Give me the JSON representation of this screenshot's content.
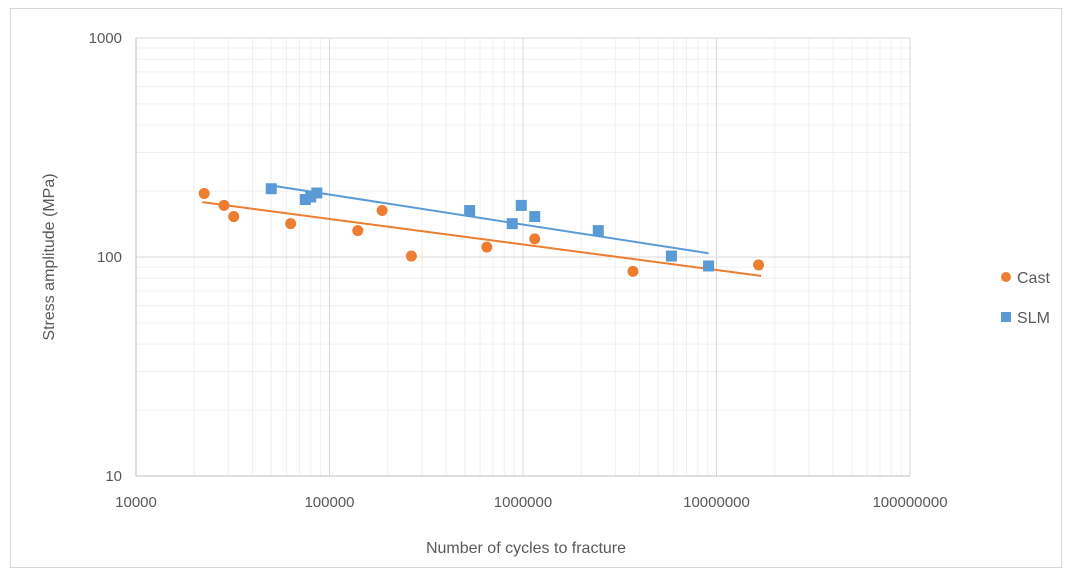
{
  "chart_data": {
    "type": "scatter",
    "title": "",
    "xlabel": "Number of cycles to fracture",
    "ylabel": "Stress amplitude (MPa)",
    "x_scale": "log",
    "y_scale": "log",
    "xlim": [
      10000,
      100000000
    ],
    "ylim": [
      10,
      1000
    ],
    "x_ticks": [
      "10000",
      "100000",
      "1000000",
      "10000000",
      "100000000"
    ],
    "y_ticks": [
      "10",
      "100",
      "1000"
    ],
    "grid": true,
    "legend_position": "right",
    "series": [
      {
        "name": "Cast",
        "color": "#ed7d31",
        "marker": "circle",
        "points": [
          [
            22500,
            195
          ],
          [
            28500,
            172
          ],
          [
            32000,
            153
          ],
          [
            63000,
            142
          ],
          [
            140000,
            132
          ],
          [
            187000,
            163
          ],
          [
            265000,
            101
          ],
          [
            650000,
            111
          ],
          [
            1150000,
            121
          ],
          [
            3700000,
            86
          ],
          [
            16500000,
            92
          ]
        ],
        "trendline": [
          [
            22000,
            178
          ],
          [
            17000000,
            82
          ]
        ]
      },
      {
        "name": "SLM",
        "color": "#5b9bd5",
        "marker": "square",
        "points": [
          [
            50000,
            205
          ],
          [
            75000,
            183
          ],
          [
            80000,
            188
          ],
          [
            86000,
            196
          ],
          [
            530000,
            163
          ],
          [
            880000,
            142
          ],
          [
            980000,
            172
          ],
          [
            1150000,
            153
          ],
          [
            2450000,
            132
          ],
          [
            5850000,
            101
          ],
          [
            9100000,
            91
          ]
        ],
        "trendline": [
          [
            50000,
            212
          ],
          [
            9100000,
            104
          ]
        ]
      }
    ]
  }
}
